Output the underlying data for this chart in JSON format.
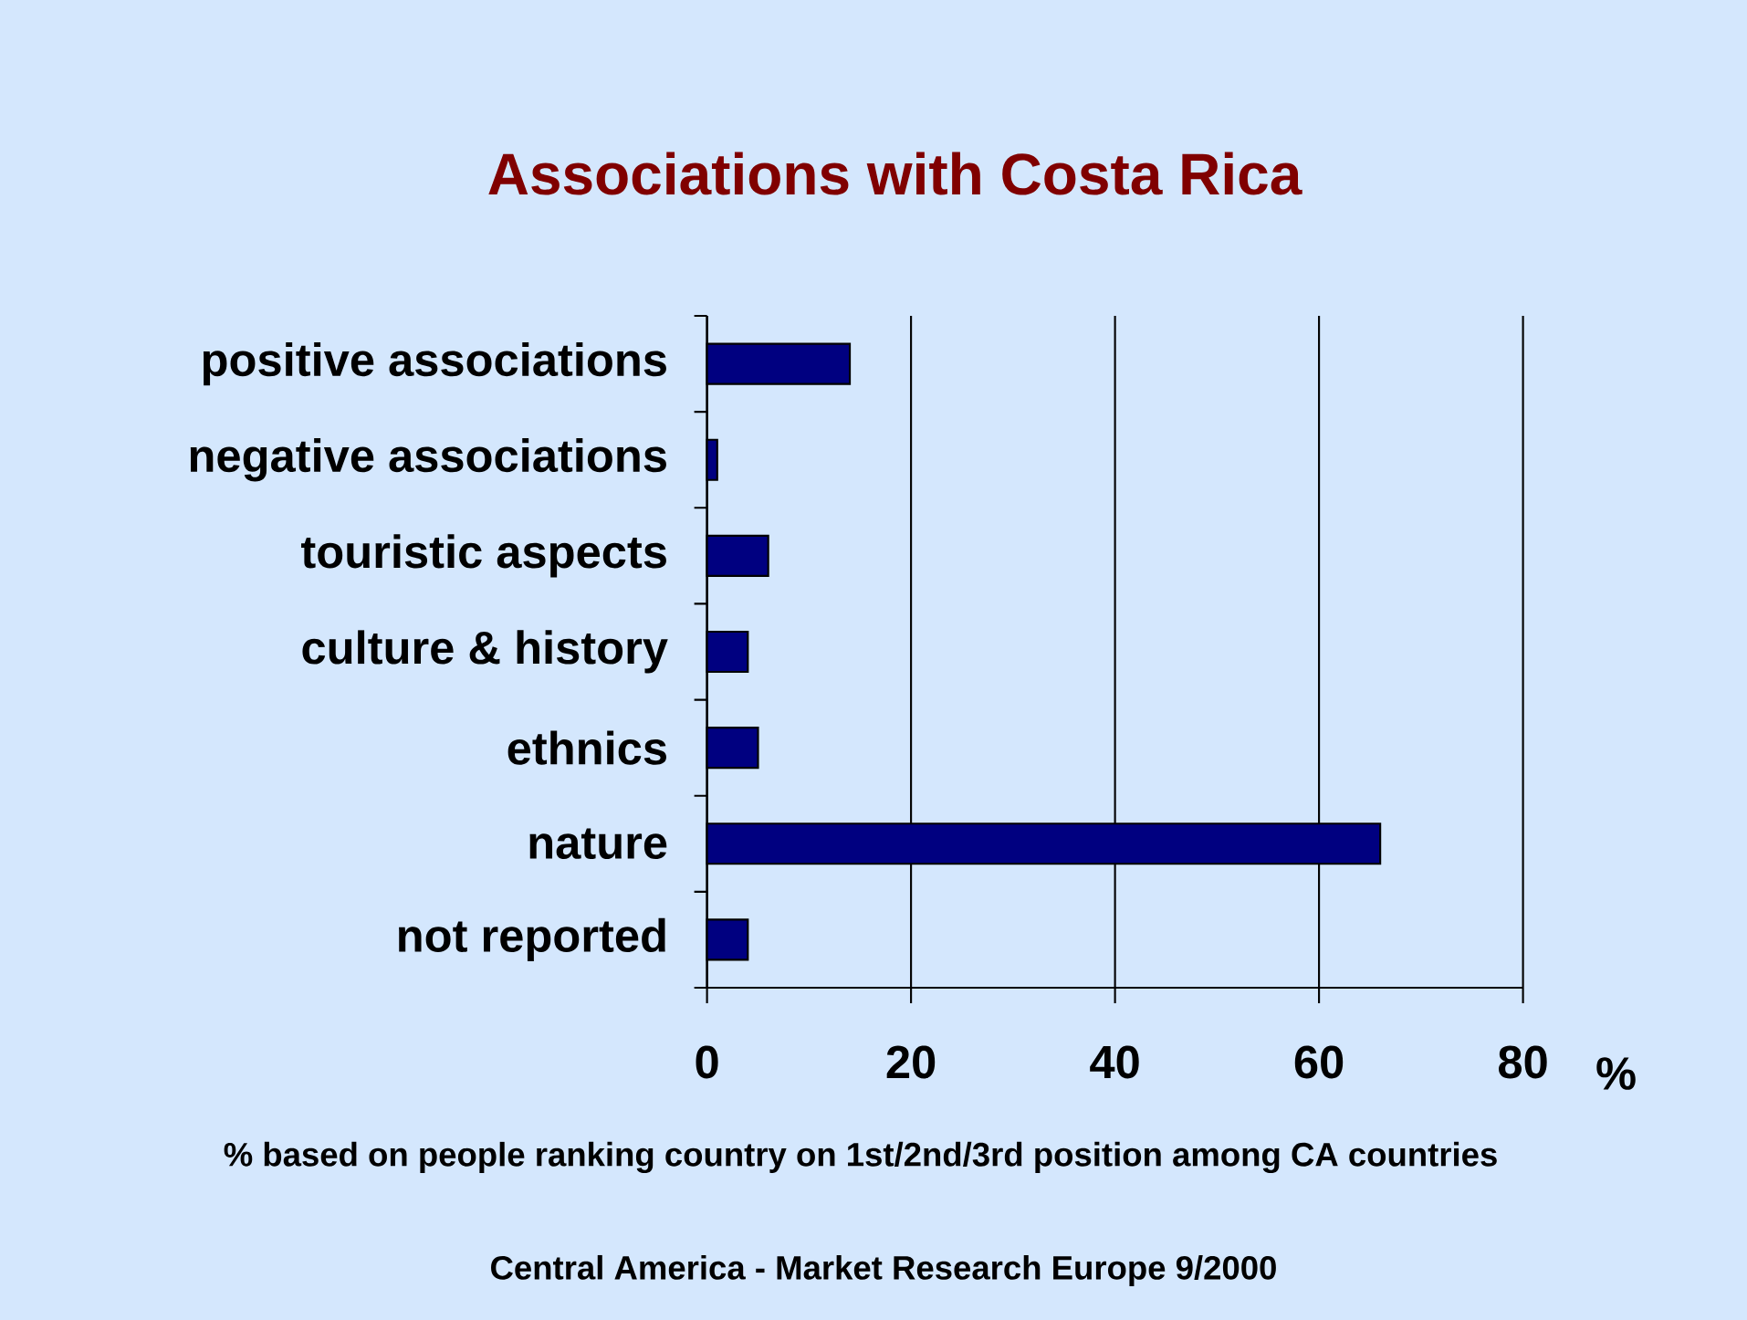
{
  "chart_data": {
    "type": "bar",
    "orientation": "horizontal",
    "title": "Associations with Costa Rica",
    "xlabel": "%",
    "categories": [
      "positive associations",
      "negative associations",
      "touristic aspects",
      "culture & history",
      "ethnics",
      "nature",
      "not reported"
    ],
    "values": [
      14,
      1,
      6,
      4,
      5,
      66,
      4
    ],
    "color": "#000080",
    "xlim": [
      0,
      80
    ],
    "xticks": [
      0,
      20,
      40,
      60,
      80
    ],
    "grid": "x",
    "annotations": [
      "% based on people ranking country on 1st/2nd/3rd position among CA countries",
      "Central America - Market Research Europe 9/2000"
    ]
  }
}
